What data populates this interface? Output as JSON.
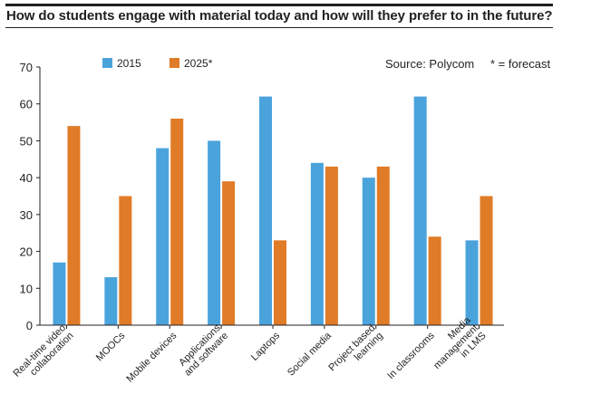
{
  "chart_data": {
    "type": "bar",
    "title": "How do students engage with material today and how will they prefer to in the future?",
    "source": "Source: Polycom",
    "footnote": "* = forecast",
    "categories": [
      [
        "Real-time video",
        "collaboration"
      ],
      [
        "MOOCs"
      ],
      [
        "Mobile devices"
      ],
      [
        "Applications",
        "and software"
      ],
      [
        "Laptops"
      ],
      [
        "Social media"
      ],
      [
        "Project based",
        "learning"
      ],
      [
        "In classrooms"
      ],
      [
        "Media",
        "management",
        "in LMS"
      ]
    ],
    "series": [
      {
        "name": "2015",
        "color": "#4ba3dc",
        "values": [
          17,
          13,
          48,
          50,
          62,
          44,
          40,
          62,
          23
        ]
      },
      {
        "name": "2025*",
        "color": "#e07b27",
        "values": [
          54,
          35,
          56,
          39,
          23,
          43,
          43,
          24,
          35
        ]
      }
    ],
    "ylim": [
      0,
      70
    ],
    "yticks": [
      0,
      10,
      20,
      30,
      40,
      50,
      60,
      70
    ],
    "grid": false,
    "legend": "top-left"
  }
}
